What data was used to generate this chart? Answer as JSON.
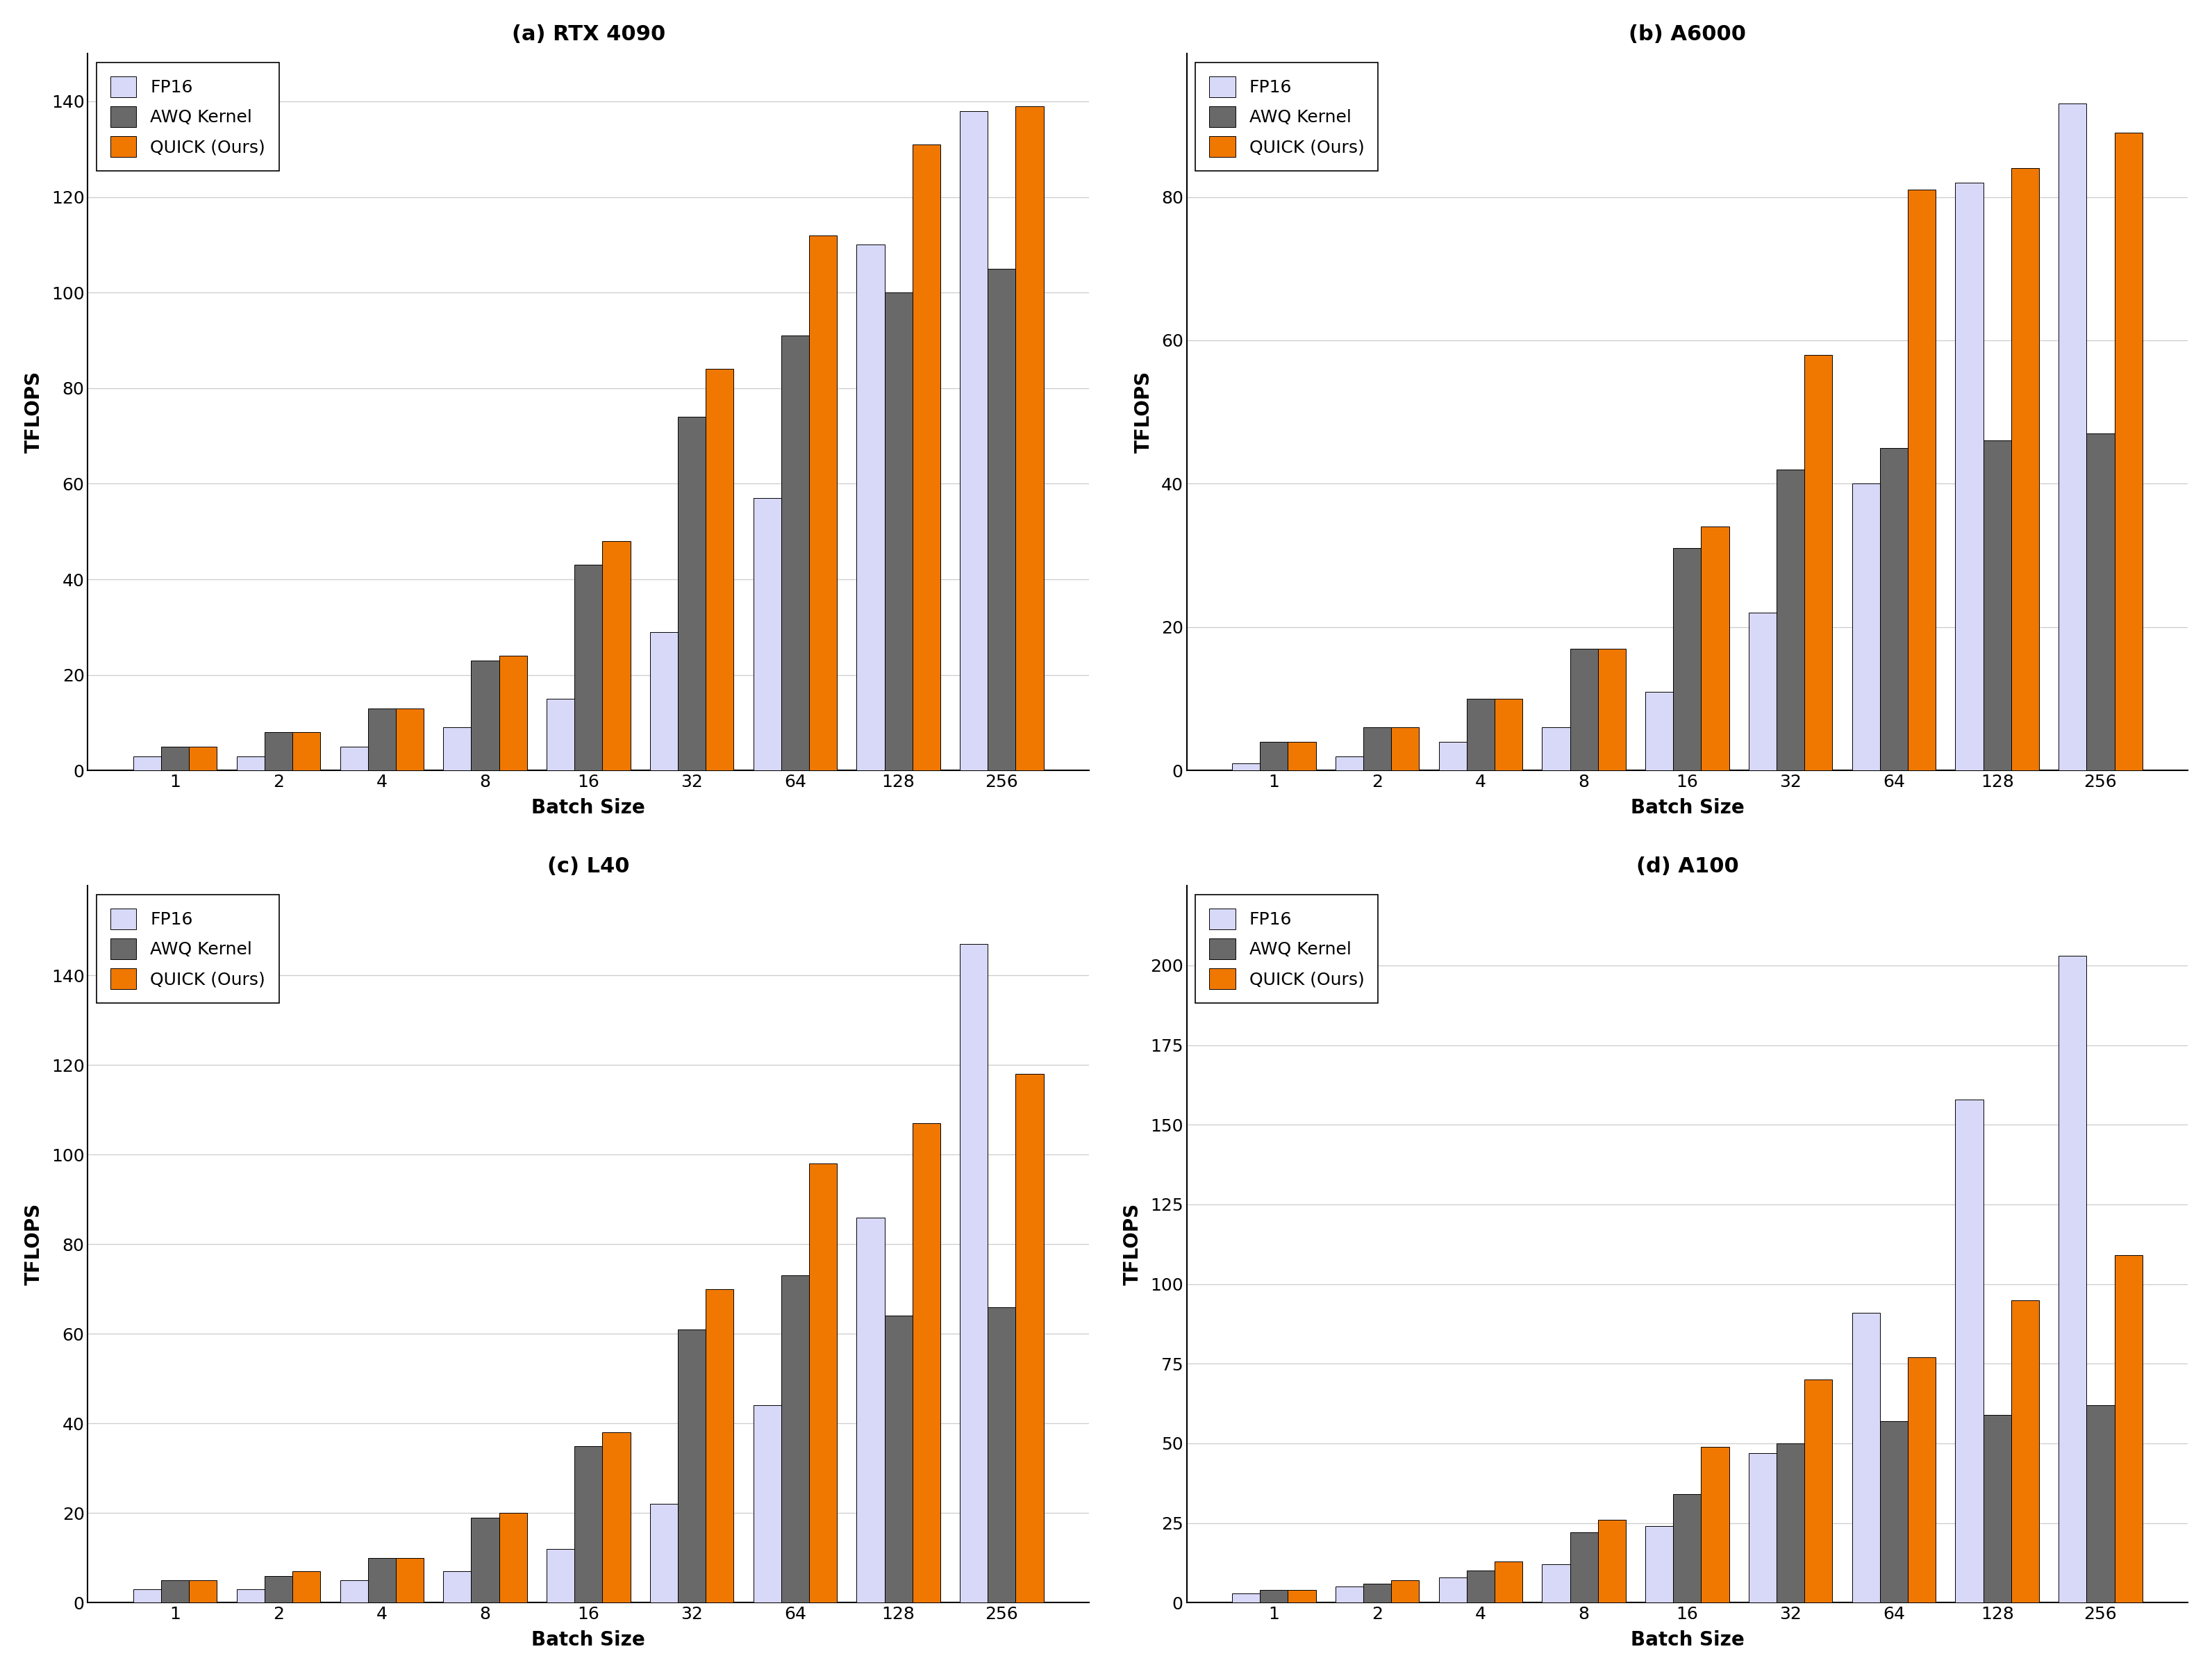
{
  "subplots": [
    {
      "title": "(a) RTX 4090",
      "fp16": [
        3,
        3,
        5,
        9,
        15,
        29,
        57,
        110,
        138
      ],
      "awq": [
        5,
        8,
        13,
        23,
        43,
        74,
        91,
        100,
        105
      ],
      "quick": [
        5,
        8,
        13,
        24,
        48,
        84,
        112,
        131,
        139
      ],
      "ylim": [
        0,
        150
      ],
      "yticks": [
        0,
        20,
        40,
        60,
        80,
        100,
        120,
        140
      ]
    },
    {
      "title": "(b) A6000",
      "fp16": [
        1,
        2,
        4,
        6,
        11,
        22,
        40,
        82,
        93
      ],
      "awq": [
        4,
        6,
        10,
        17,
        31,
        42,
        45,
        46,
        47
      ],
      "quick": [
        4,
        6,
        10,
        17,
        34,
        58,
        81,
        84,
        89
      ],
      "ylim": [
        0,
        100
      ],
      "yticks": [
        0,
        20,
        40,
        60,
        80
      ]
    },
    {
      "title": "(c) L40",
      "fp16": [
        3,
        3,
        5,
        7,
        12,
        22,
        44,
        86,
        147
      ],
      "awq": [
        5,
        6,
        10,
        19,
        35,
        61,
        73,
        64,
        66
      ],
      "quick": [
        5,
        7,
        10,
        20,
        38,
        70,
        98,
        107,
        118
      ],
      "ylim": [
        0,
        160
      ],
      "yticks": [
        0,
        20,
        40,
        60,
        80,
        100,
        120,
        140
      ]
    },
    {
      "title": "(d) A100",
      "fp16": [
        3,
        5,
        8,
        12,
        24,
        47,
        91,
        158,
        203
      ],
      "awq": [
        4,
        6,
        10,
        22,
        34,
        50,
        57,
        59,
        62
      ],
      "quick": [
        4,
        7,
        13,
        26,
        49,
        70,
        77,
        95,
        109
      ],
      "ylim": [
        0,
        225
      ],
      "yticks": [
        0,
        25,
        50,
        75,
        100,
        125,
        150,
        175,
        200
      ]
    }
  ],
  "batch_sizes": [
    1,
    2,
    4,
    8,
    16,
    32,
    64,
    128,
    256
  ],
  "colors": {
    "fp16": "#d8d8f8",
    "awq": "#696969",
    "quick": "#f07800"
  },
  "bar_width": 0.27,
  "xlabel": "Batch Size",
  "ylabel": "TFLOPS",
  "legend_labels": [
    "FP16",
    "AWQ Kernel",
    "QUICK (Ours)"
  ],
  "title_fontsize": 22,
  "label_fontsize": 20,
  "tick_fontsize": 18,
  "legend_fontsize": 18,
  "background_color": "#ffffff"
}
